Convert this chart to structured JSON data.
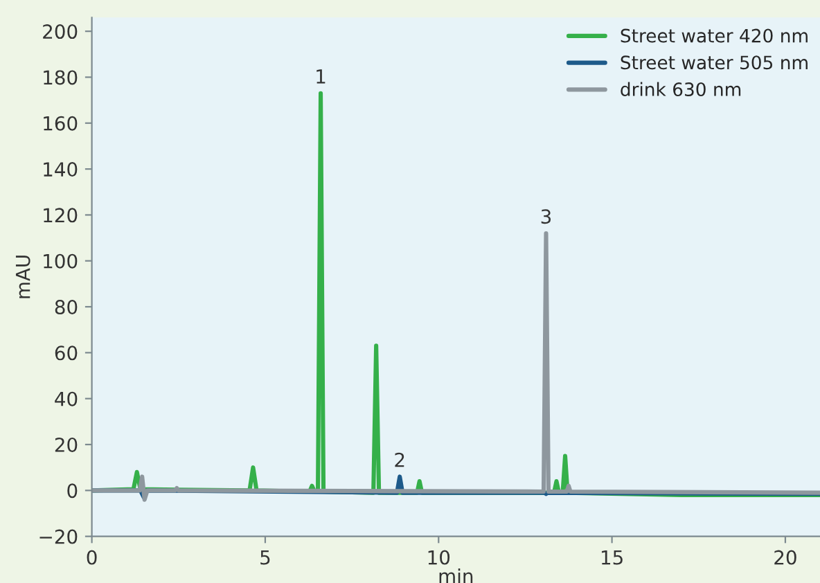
{
  "chart_data": {
    "type": "line",
    "xlabel": "min",
    "ylabel": "mAU",
    "xlim": [
      0,
      21
    ],
    "xticks": [
      0,
      5,
      10,
      15,
      20
    ],
    "ylim": [
      -20,
      206
    ],
    "yticks": [
      {
        "value": -20,
        "label": "−20"
      },
      0,
      20,
      40,
      60,
      80,
      100,
      120,
      140,
      160,
      180,
      200
    ],
    "grid": false,
    "legend": "top right",
    "marker": "none",
    "line_style": "solid",
    "series": [
      {
        "name": "Street water 420 nm",
        "color": "#35b04a",
        "x": [
          0,
          1.2,
          1.3,
          1.4,
          4.55,
          4.65,
          4.75,
          6.28,
          6.35,
          6.42,
          6.52,
          6.6,
          6.68,
          8.12,
          8.2,
          8.28,
          9.38,
          9.45,
          9.52,
          13.33,
          13.4,
          13.47,
          13.58,
          13.65,
          13.72,
          17,
          21
        ],
        "values": [
          0,
          0.5,
          8,
          0.5,
          0,
          10,
          0,
          -0.5,
          2,
          -0.5,
          -0.5,
          173,
          -0.5,
          -1,
          63,
          -1,
          -1,
          4,
          -1,
          -1,
          4,
          -1,
          -1,
          15,
          -1,
          -2,
          -2
        ]
      },
      {
        "name": "Street water 505 nm",
        "color": "#1d5a8a",
        "x": [
          0,
          1.4,
          1.5,
          1.6,
          8.8,
          8.88,
          8.96,
          13.05,
          13.1,
          13.15,
          21
        ],
        "values": [
          0,
          0,
          -3,
          0,
          -1,
          6,
          -1,
          -1,
          -1.5,
          -1,
          -1.5
        ]
      },
      {
        "name": "drink 630 nm",
        "color": "#8e979e",
        "x": [
          0,
          1.38,
          1.45,
          1.52,
          1.6,
          2.4,
          2.45,
          2.5,
          13.03,
          13.1,
          13.17,
          13.7,
          13.75,
          13.8,
          21
        ],
        "values": [
          0,
          0,
          6,
          -4,
          0,
          0,
          1,
          0,
          -0.5,
          112,
          -0.5,
          -0.5,
          2,
          -0.5,
          -1
        ]
      }
    ],
    "annotations": [
      {
        "text": "1",
        "x": 6.6,
        "y": 173
      },
      {
        "text": "2",
        "x": 8.88,
        "y": 6
      },
      {
        "text": "3",
        "x": 13.1,
        "y": 112
      }
    ]
  }
}
